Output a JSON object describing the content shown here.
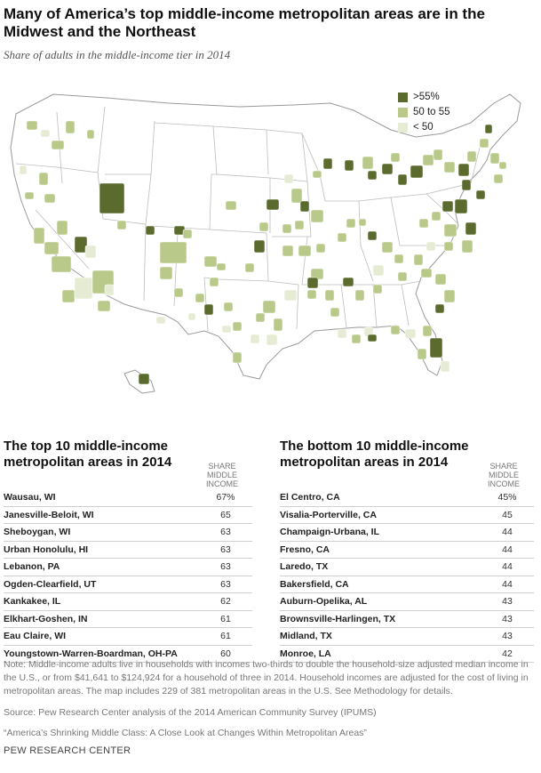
{
  "title": "Many of America’s top middle-income metropolitan areas are in the Midwest and the Northeast",
  "subtitle": "Share of adults in the middle-income tier in 2014",
  "legend": [
    {
      "label": ">55%",
      "color": "#5b6b2e"
    },
    {
      "label": "50 to 55",
      "color": "#b9c98a"
    },
    {
      "label": "< 50",
      "color": "#e6ebd3"
    }
  ],
  "map_style": {
    "land": "#ffffff",
    "border": "#9a9a9a",
    "state_border": "#bdbdbd"
  },
  "chart_data": [
    {
      "type": "table",
      "title": "The top 10 middle-income metropolitan areas in 2014",
      "column_header": "SHARE MIDDLE INCOME",
      "rows": [
        {
          "name": "Wausau, WI",
          "value": "67%"
        },
        {
          "name": "Janesville-Beloit, WI",
          "value": "65"
        },
        {
          "name": "Sheboygan, WI",
          "value": "63"
        },
        {
          "name": "Urban Honolulu, HI",
          "value": "63"
        },
        {
          "name": "Lebanon, PA",
          "value": "63"
        },
        {
          "name": "Ogden-Clearfield, UT",
          "value": "63"
        },
        {
          "name": "Kankakee, IL",
          "value": "62"
        },
        {
          "name": "Elkhart-Goshen, IN",
          "value": "61"
        },
        {
          "name": "Eau Claire, WI",
          "value": "61"
        },
        {
          "name": "Youngstown-Warren-Boardman, OH-PA",
          "value": "60"
        }
      ]
    },
    {
      "type": "table",
      "title": "The bottom 10 middle-income metropolitan areas in 2014",
      "column_header": "SHARE MIDDLE INCOME",
      "rows": [
        {
          "name": "El Centro, CA",
          "value": "45%"
        },
        {
          "name": "Visalia-Porterville, CA",
          "value": "45"
        },
        {
          "name": "Champaign-Urbana, IL",
          "value": "44"
        },
        {
          "name": "Fresno, CA",
          "value": "44"
        },
        {
          "name": "Laredo, TX",
          "value": "44"
        },
        {
          "name": "Bakersfield, CA",
          "value": "44"
        },
        {
          "name": "Auburn-Opelika, AL",
          "value": "43"
        },
        {
          "name": "Brownsville-Harlingen, TX",
          "value": "43"
        },
        {
          "name": "Midland, TX",
          "value": "43"
        },
        {
          "name": "Monroe, LA",
          "value": "42"
        }
      ]
    }
  ],
  "note": "Note: Middle-income adults live in households with incomes two-thirds to double the household-size adjusted median income in the U.S., or from $41,641 to $124,924 for a household of three in 2014. Household incomes are adjusted for the cost of living in metropolitan areas. The map includes 229 of 381 metropolitan areas in the U.S. See Methodology for details.",
  "source": "Source: Pew Research Center analysis of the 2014 American Community Survey (IPUMS)",
  "report": "“America’s Shrinking Middle Class: A Close Look at Changes Within Metropolitan Areas”",
  "credit": "PEW RESEARCH CENTER"
}
